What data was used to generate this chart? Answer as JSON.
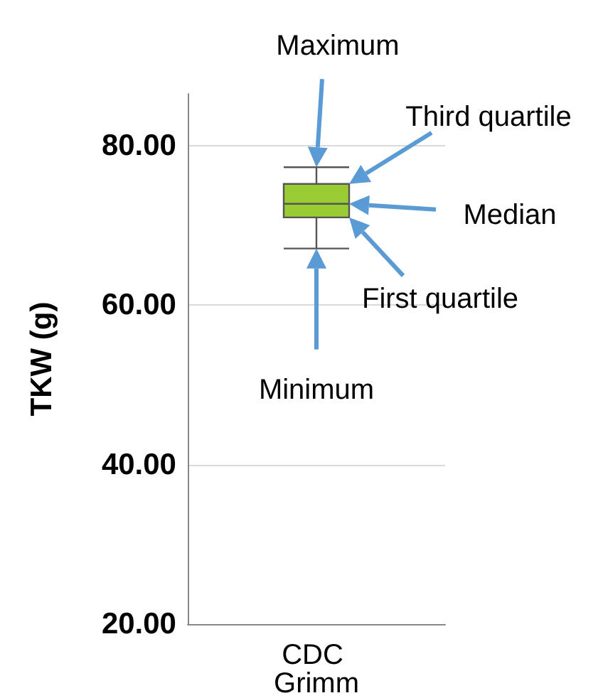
{
  "chart_data": {
    "type": "box",
    "ylabel": "TKW (g)",
    "categories": [
      "CDC Grimm"
    ],
    "boxes": [
      {
        "low": 67.1,
        "q1": 71.0,
        "median": 72.7,
        "q3": 75.2,
        "high": 77.3
      }
    ],
    "color": "#99cc33",
    "ylim": [
      20,
      86.5
    ],
    "yticks": [
      {
        "value": 20,
        "label": "20.00"
      },
      {
        "value": 40,
        "label": "40.00"
      },
      {
        "value": 60,
        "label": "60.00"
      },
      {
        "value": 80,
        "label": "80.00"
      }
    ],
    "grid": "y",
    "annotations": [
      "Maximum",
      "Third quartile",
      "Median",
      "First quartile",
      "Minimum"
    ]
  }
}
